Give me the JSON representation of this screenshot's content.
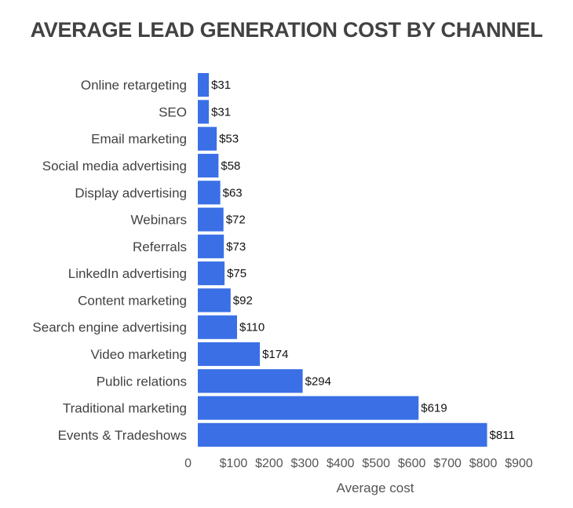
{
  "chart_data": {
    "type": "bar",
    "orientation": "horizontal",
    "title": "AVERAGE LEAD GENERATION COST BY CHANNEL",
    "xlabel": "Average cost",
    "ylabel": "",
    "categories": [
      "Online retargeting",
      "SEO",
      "Email marketing",
      "Social media advertising",
      "Display advertising",
      "Webinars",
      "Referrals",
      "LinkedIn advertising",
      "Content marketing",
      "Search engine advertising",
      "Video marketing",
      "Public relations",
      "Traditional marketing",
      "Events & Tradeshows"
    ],
    "values": [
      31,
      31,
      53,
      58,
      63,
      72,
      73,
      75,
      92,
      110,
      174,
      294,
      619,
      811
    ],
    "value_labels": [
      "$31",
      "$31",
      "$53",
      "$58",
      "$63",
      "$72",
      "$73",
      "$75",
      "$92",
      "$110",
      "$174",
      "$294",
      "$619",
      "$811"
    ],
    "xlim": [
      0,
      900
    ],
    "x_ticks": [
      0,
      100,
      200,
      300,
      400,
      500,
      600,
      700,
      800,
      900
    ],
    "x_tick_labels": [
      "0",
      "$100",
      "$200",
      "$300",
      "$400",
      "$500",
      "$600",
      "$700",
      "$800",
      "$900"
    ],
    "grid": false,
    "legend": "none",
    "colors": {
      "bar": "#3a6fe6"
    }
  }
}
